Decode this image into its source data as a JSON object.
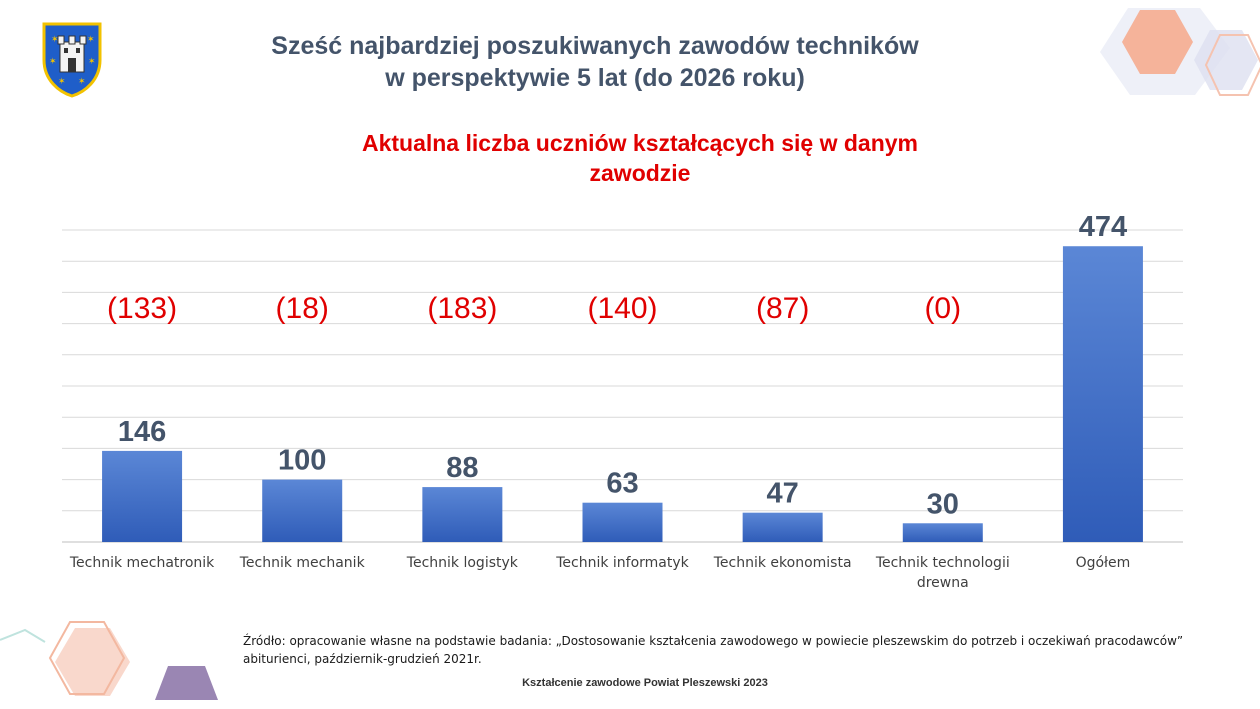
{
  "header": {
    "title_line1": "Sześć najbardziej poszukiwanych zawodów techników",
    "title_line2": "w perspektywie 5 lat (do 2026 roku)",
    "subtitle_line1": "Aktualna liczba uczniów kształcących się w danym",
    "subtitle_line2": "zawodzie"
  },
  "colors": {
    "title": "#44546a",
    "subtitle": "#e00000",
    "bar_top": "#5b87d6",
    "bar_bottom": "#2f5cb8",
    "value_label": "#44546a",
    "paren_label": "#e00000",
    "grid": "#d9d9d9"
  },
  "chart_data": {
    "type": "bar",
    "categories": [
      [
        "Technik mechatronik"
      ],
      [
        "Technik mechanik"
      ],
      [
        "Technik logistyk"
      ],
      [
        "Technik informatyk"
      ],
      [
        "Technik ekonomista"
      ],
      [
        "Technik technologii",
        "drewna"
      ],
      [
        "Ogółem"
      ]
    ],
    "values": [
      146,
      100,
      88,
      63,
      47,
      30,
      474
    ],
    "annotations": [
      "(133)",
      "(18)",
      "(183)",
      "(140)",
      "(87)",
      "(0)",
      ""
    ],
    "ylim": [
      0,
      500
    ],
    "grid": true,
    "legend": "none"
  },
  "source": {
    "line1": "Źródło: opracowanie własne na podstawie badania: „Dostosowanie kształcenia zawodowego w powiecie pleszewskim do potrzeb i oczekiwań pracodawców”",
    "line2": "abiturienci, październik-grudzień 2021r."
  },
  "footer": "Kształcenie zawodowe Powiat Pleszewski 2023",
  "icons": {
    "crest": "coat-of-arms-icon",
    "decor_top_right": "hexagon-decor-icon",
    "decor_bottom_left": "hexagon-decor-icon"
  }
}
